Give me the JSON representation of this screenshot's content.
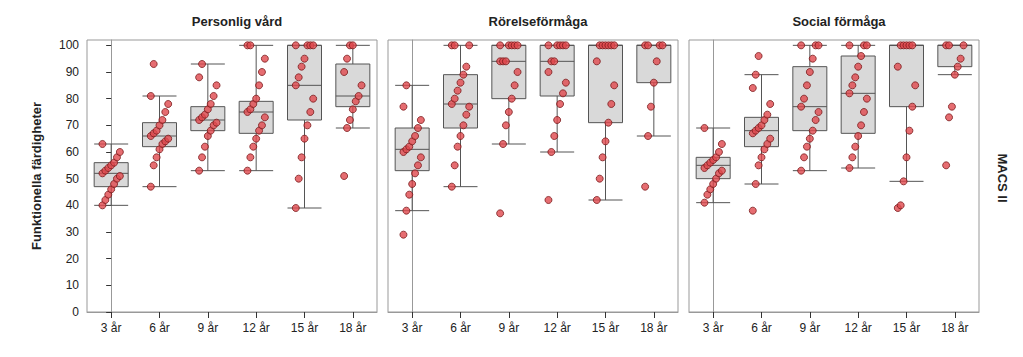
{
  "chart_data": {
    "type": "boxplot",
    "y_label": "Funktionella färdigheter",
    "side_label": "MACS II",
    "categories": [
      "3 år",
      "6 år",
      "9 år",
      "12 år",
      "15 år",
      "18 år"
    ],
    "ylim": [
      0,
      102
    ],
    "yticks": [
      0,
      10,
      20,
      30,
      40,
      50,
      60,
      70,
      80,
      90,
      100
    ],
    "grid": false,
    "color": "#d9d9d9",
    "point_series": {
      "type": "scatter",
      "color": "#e0484e",
      "marker": "circle"
    },
    "panels": [
      {
        "title": "Personlig vård",
        "boxes": [
          {
            "min": 40,
            "q1": 47,
            "median": 52,
            "q3": 56,
            "max": 63
          },
          {
            "min": 47,
            "q1": 62,
            "median": 66,
            "q3": 71,
            "max": 81
          },
          {
            "min": 53,
            "q1": 68,
            "median": 72,
            "q3": 77,
            "max": 93
          },
          {
            "min": 53,
            "q1": 67,
            "median": 75,
            "q3": 79,
            "max": 100
          },
          {
            "min": 39,
            "q1": 72,
            "median": 85,
            "q3": 100,
            "max": 100
          },
          {
            "min": 69,
            "q1": 77,
            "median": 81,
            "q3": 93,
            "max": 100
          }
        ],
        "points": [
          [
            40,
            42,
            44,
            46,
            48,
            50,
            51,
            52,
            53,
            54,
            55,
            56,
            58,
            60,
            63
          ],
          [
            47,
            55,
            58,
            61,
            63,
            64,
            65,
            66,
            67,
            68,
            70,
            72,
            75,
            78,
            81,
            93
          ],
          [
            53,
            58,
            62,
            66,
            68,
            70,
            71,
            72,
            73,
            74,
            76,
            78,
            81,
            85,
            88,
            93
          ],
          [
            53,
            58,
            62,
            65,
            68,
            70,
            73,
            75,
            76,
            78,
            80,
            85,
            90,
            95,
            100,
            100
          ],
          [
            39,
            50,
            58,
            65,
            70,
            75,
            80,
            85,
            88,
            92,
            95,
            100,
            100,
            100,
            100
          ],
          [
            51,
            69,
            72,
            76,
            79,
            81,
            85,
            90,
            95,
            100,
            100
          ]
        ]
      },
      {
        "title": "Rörelseförmåga",
        "boxes": [
          {
            "min": 38,
            "q1": 53,
            "median": 61,
            "q3": 69,
            "max": 85
          },
          {
            "min": 47,
            "q1": 69,
            "median": 78,
            "q3": 89,
            "max": 100
          },
          {
            "min": 63,
            "q1": 80,
            "median": 94,
            "q3": 100,
            "max": 100
          },
          {
            "min": 60,
            "q1": 81,
            "median": 94,
            "q3": 100,
            "max": 100
          },
          {
            "min": 42,
            "q1": 71,
            "median": 100,
            "q3": 100,
            "max": 100
          },
          {
            "min": 66,
            "q1": 86,
            "median": 100,
            "q3": 100,
            "max": 100
          }
        ],
        "points": [
          [
            29,
            38,
            44,
            48,
            52,
            55,
            58,
            60,
            61,
            62,
            64,
            66,
            69,
            72,
            77,
            85
          ],
          [
            47,
            55,
            62,
            66,
            70,
            74,
            77,
            78,
            80,
            83,
            86,
            89,
            92,
            100,
            100,
            100
          ],
          [
            37,
            63,
            70,
            75,
            80,
            85,
            90,
            94,
            94,
            94,
            100,
            100,
            100,
            100,
            100
          ],
          [
            42,
            60,
            66,
            72,
            78,
            82,
            86,
            90,
            94,
            94,
            100,
            100,
            100,
            100,
            100
          ],
          [
            42,
            50,
            58,
            64,
            71,
            78,
            85,
            94,
            100,
            100,
            100,
            100,
            100,
            100
          ],
          [
            47,
            66,
            77,
            86,
            94,
            100,
            100,
            100,
            100
          ]
        ]
      },
      {
        "title": "Social förmåga",
        "boxes": [
          {
            "min": 41,
            "q1": 50,
            "median": 55,
            "q3": 58,
            "max": 69
          },
          {
            "min": 48,
            "q1": 62,
            "median": 68,
            "q3": 73,
            "max": 89
          },
          {
            "min": 53,
            "q1": 68,
            "median": 77,
            "q3": 92,
            "max": 100
          },
          {
            "min": 54,
            "q1": 67,
            "median": 82,
            "q3": 96,
            "max": 100
          },
          {
            "min": 49,
            "q1": 77,
            "median": 100,
            "q3": 100,
            "max": 100
          },
          {
            "min": 89,
            "q1": 92,
            "median": 100,
            "q3": 100,
            "max": 100
          }
        ],
        "points": [
          [
            41,
            44,
            46,
            48,
            50,
            52,
            53,
            54,
            55,
            56,
            57,
            58,
            60,
            63,
            69
          ],
          [
            38,
            48,
            55,
            58,
            61,
            63,
            65,
            67,
            68,
            69,
            70,
            72,
            74,
            78,
            84,
            89,
            96
          ],
          [
            53,
            58,
            62,
            65,
            68,
            72,
            75,
            77,
            80,
            85,
            90,
            95,
            100,
            100,
            100
          ],
          [
            54,
            58,
            62,
            66,
            70,
            75,
            80,
            82,
            85,
            88,
            92,
            96,
            100,
            100,
            100
          ],
          [
            39,
            40,
            49,
            58,
            68,
            77,
            85,
            92,
            100,
            100,
            100,
            100,
            100
          ],
          [
            55,
            73,
            77,
            89,
            92,
            95,
            100,
            100,
            100
          ]
        ]
      }
    ]
  }
}
